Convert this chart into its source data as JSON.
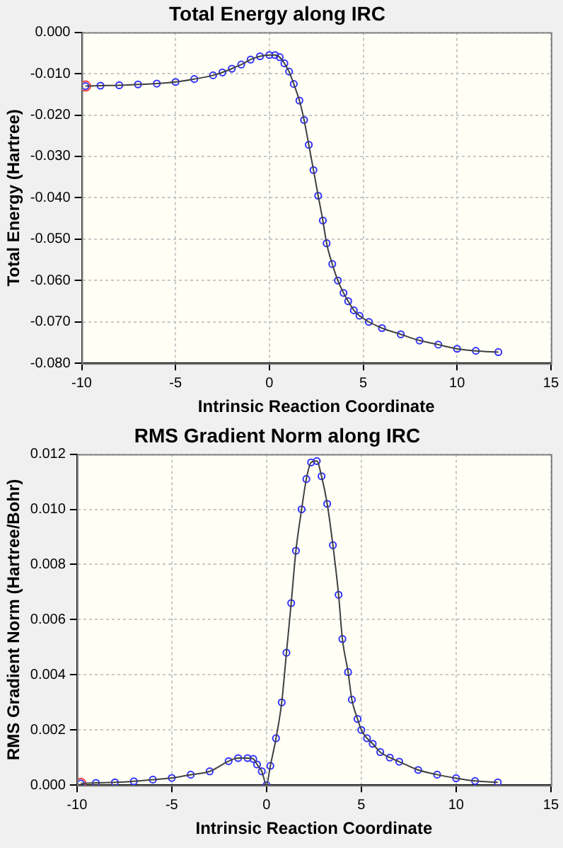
{
  "chart_data": [
    {
      "type": "line",
      "title": "Total Energy along IRC",
      "xlabel": "Intrinsic Reaction Coordinate",
      "ylabel": "Total Energy (Hartree)",
      "grid": true,
      "legend": false,
      "marker": "circle",
      "x": [
        -9.8,
        -9,
        -8,
        -7,
        -6,
        -5,
        -4,
        -3,
        -2.5,
        -2,
        -1.5,
        -1,
        -0.5,
        0,
        0.3,
        0.55,
        0.8,
        1.05,
        1.3,
        1.6,
        1.85,
        2.1,
        2.35,
        2.6,
        2.85,
        3.05,
        3.35,
        3.65,
        3.95,
        4.2,
        4.5,
        4.8,
        5.3,
        6,
        7,
        8,
        9,
        10,
        11,
        12.2
      ],
      "series": [
        {
          "color": "#3333ff",
          "values": [
            -0.013,
            -0.0129,
            -0.0128,
            -0.0126,
            -0.0124,
            -0.012,
            -0.0113,
            -0.0104,
            -0.0097,
            -0.0088,
            -0.0078,
            -0.0066,
            -0.0058,
            -0.0055,
            -0.0055,
            -0.006,
            -0.0075,
            -0.0095,
            -0.0125,
            -0.0165,
            -0.0212,
            -0.0272,
            -0.0333,
            -0.0395,
            -0.0455,
            -0.051,
            -0.056,
            -0.06,
            -0.063,
            -0.065,
            -0.0672,
            -0.0685,
            -0.07,
            -0.0715,
            -0.073,
            -0.0745,
            -0.0755,
            -0.0765,
            -0.077,
            -0.0773
          ]
        },
        {
          "type": "scatter",
          "color": "#ff4040",
          "x": [
            -9.8
          ],
          "values": [
            -0.013
          ]
        }
      ],
      "xlim": [
        -10,
        15
      ],
      "xticks": [
        -10,
        -5,
        0,
        5,
        10,
        15
      ],
      "ylim": [
        -0.08,
        0
      ],
      "yticks": [
        {
          "value": -0.08,
          "label": "-0.080"
        },
        {
          "value": -0.07,
          "label": "-0.070"
        },
        {
          "value": -0.06,
          "label": "-0.060"
        },
        {
          "value": -0.05,
          "label": "-0.050"
        },
        {
          "value": -0.04,
          "label": "-0.040"
        },
        {
          "value": -0.03,
          "label": "-0.030"
        },
        {
          "value": -0.02,
          "label": "-0.020"
        },
        {
          "value": -0.01,
          "label": "-0.010"
        },
        {
          "value": 0,
          "label": "0.000"
        }
      ]
    },
    {
      "type": "line",
      "title": "RMS Gradient Norm along IRC",
      "xlabel": "Intrinsic Reaction Coordinate",
      "ylabel": "RMS Gradient Norm (Hartree/Bohr)",
      "grid": true,
      "legend": false,
      "marker": "circle",
      "x": [
        -9.8,
        -9,
        -8,
        -7,
        -6,
        -5,
        -4,
        -3,
        -2,
        -1.5,
        -1,
        -0.7,
        -0.5,
        -0.25,
        0,
        0.2,
        0.5,
        0.8,
        1.05,
        1.3,
        1.55,
        1.85,
        2.1,
        2.35,
        2.65,
        2.9,
        3.2,
        3.5,
        3.8,
        4.0,
        4.3,
        4.5,
        4.8,
        5.0,
        5.3,
        5.6,
        6,
        6.5,
        7,
        8,
        9,
        10,
        11,
        12.2
      ],
      "series": [
        {
          "color": "#3333ff",
          "values": [
            6e-05,
            8e-05,
            0.0001,
            0.00014,
            0.0002,
            0.00026,
            0.00038,
            0.0005,
            0.00087,
            0.00098,
            0.00098,
            0.00095,
            0.00075,
            0.0005,
            0.0,
            0.0007,
            0.0017,
            0.003,
            0.0048,
            0.0066,
            0.0085,
            0.01,
            0.0111,
            0.0117,
            0.01175,
            0.0112,
            0.0102,
            0.0087,
            0.0069,
            0.0053,
            0.0041,
            0.0031,
            0.0024,
            0.002,
            0.0017,
            0.0015,
            0.0012,
            0.001,
            0.00085,
            0.00055,
            0.00038,
            0.00025,
            0.00015,
            0.0001
          ]
        },
        {
          "type": "scatter",
          "color": "#ff4040",
          "x": [
            -9.8
          ],
          "values": [
            6e-05
          ]
        }
      ],
      "xlim": [
        -10,
        15
      ],
      "xticks": [
        -10,
        -5,
        0,
        5,
        10,
        15
      ],
      "ylim": [
        0,
        0.012
      ],
      "yticks": [
        {
          "value": 0,
          "label": "0.000"
        },
        {
          "value": 0.002,
          "label": "0.002"
        },
        {
          "value": 0.004,
          "label": "0.004"
        },
        {
          "value": 0.006,
          "label": "0.006"
        },
        {
          "value": 0.008,
          "label": "0.008"
        },
        {
          "value": 0.01,
          "label": "0.010"
        },
        {
          "value": 0.012,
          "label": "0.012"
        }
      ]
    }
  ]
}
